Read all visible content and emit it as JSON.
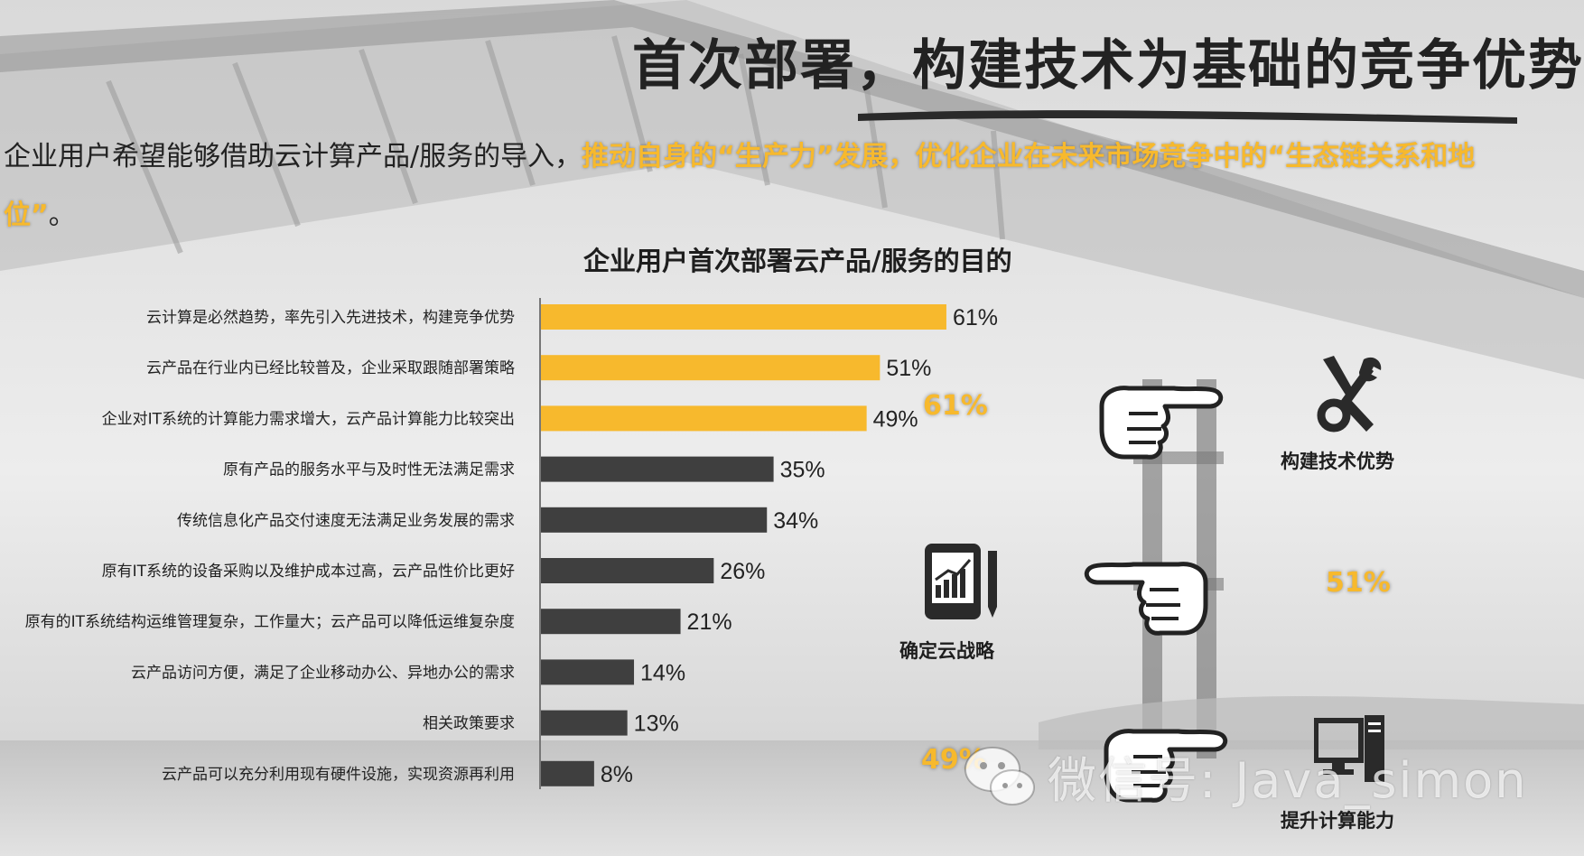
{
  "header": {
    "title": "首次部署，构建技术为基础的竞争优势",
    "subtitle_line1_plain": "企业用户希望能够借助云计算产品/服务的导入，",
    "subtitle_line1_highlight": "推动自身的“生产力”发展，优化企业在未来市场竞争中的“生态链关系和地",
    "subtitle_line2_highlight": "位”",
    "subtitle_line2_plain": "。"
  },
  "side_panel": {
    "items": [
      {
        "label": "构建技术优势",
        "icon": "tools-icon",
        "pct": "61%"
      },
      {
        "label": "确定云战略",
        "icon": "tablet-chart-icon",
        "pct": "51%"
      },
      {
        "label": "提升计算能力",
        "icon": "computer-icon",
        "pct": "49%"
      }
    ]
  },
  "watermark": {
    "text": "微信号: Java_simon"
  },
  "colors": {
    "highlight": "#f7b92d",
    "dark_bar": "#3f3f3f",
    "text": "#222222"
  },
  "chart_data": {
    "type": "bar",
    "orientation": "horizontal",
    "title": "企业用户首次部署云产品/服务的目的",
    "categories": [
      "云计算是必然趋势，率先引入先进技术，构建竞争优势",
      "云产品在行业内已经比较普及，企业采取跟随部署策略",
      "企业对IT系统的计算能力需求增大，云产品计算能力比较突出",
      "原有产品的服务水平与及时性无法满足需求",
      "传统信息化产品交付速度无法满足业务发展的需求",
      "原有IT系统的设备采购以及维护成本过高，云产品性价比更好",
      "原有的IT系统结构运维管理复杂，工作量大；云产品可以降低运维复杂度",
      "云产品访问方便，满足了企业移动办公、异地办公的需求",
      "相关政策要求",
      "云产品可以充分利用现有硬件设施，实现资源再利用"
    ],
    "values": [
      61,
      51,
      49,
      35,
      34,
      26,
      21,
      14,
      13,
      8
    ],
    "value_labels": [
      "61%",
      "51%",
      "49%",
      "35%",
      "34%",
      "26%",
      "21%",
      "14%",
      "13%",
      "8%"
    ],
    "highlight_top_n": 3,
    "colors": {
      "highlight": "#f7b92d",
      "other": "#3f3f3f"
    },
    "unit": "%",
    "xlim": [
      0,
      100
    ]
  }
}
